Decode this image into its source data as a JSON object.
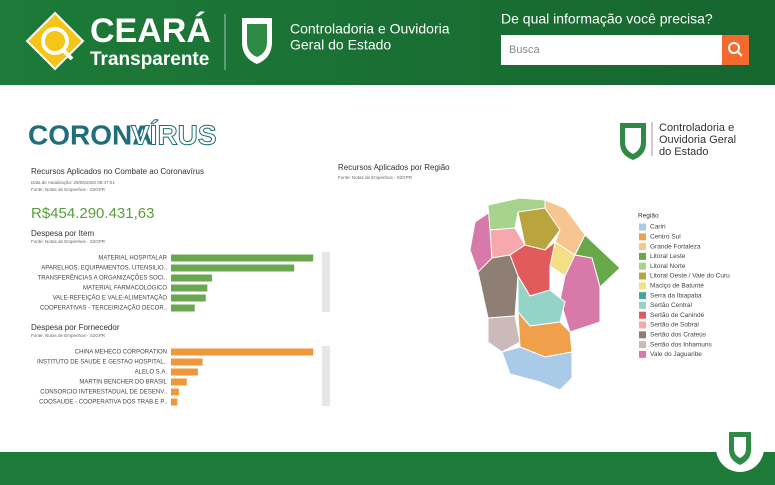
{
  "header": {
    "logo_title": "CEARÁ",
    "logo_subtitle": "Transparente",
    "agency": [
      "Controladoria e Ouvidoria",
      "Geral do Estado"
    ],
    "search_prompt": "De qual informação você precisa?",
    "search_placeholder": "Busca"
  },
  "dashboard": {
    "title_bold": "CORONA",
    "title_outline": "VÍRUS",
    "agency": [
      "Controladoria e",
      "Ouvidoria Geral",
      "do Estado"
    ],
    "summary": {
      "title": "Recursos Aplicados no Combate ao Coronavírus",
      "updated": "Data de Atualização: 29/06/2020 08:47:01",
      "source": "Fonte: Notas de Empenhos - S2GPR",
      "total": "R$454.290.431,63"
    },
    "map": {
      "title": "Recursos Aplicados por Região",
      "source": "Fonte: Notas de Empenhos - S2GPR",
      "legend_title": "Região",
      "regions": [
        {
          "name": "Cariri",
          "color": "#a9cbe8"
        },
        {
          "name": "Centro Sul",
          "color": "#f0a04b"
        },
        {
          "name": "Grande Fortaleza",
          "color": "#f8c591"
        },
        {
          "name": "Litoral Leste",
          "color": "#66a84a"
        },
        {
          "name": "Litoral Norte",
          "color": "#a7d48c"
        },
        {
          "name": "Litoral Oeste / Vale do Curu",
          "color": "#b9a43e"
        },
        {
          "name": "Maciço de Baturité",
          "color": "#f2df86"
        },
        {
          "name": "Serra da Ibiapaba",
          "color": "#4aa6a2"
        },
        {
          "name": "Sertão Central",
          "color": "#93d3c8"
        },
        {
          "name": "Sertão de Canindé",
          "color": "#e15b5d"
        },
        {
          "name": "Sertão de Sobral",
          "color": "#f6a9ac"
        },
        {
          "name": "Sertão dos Crateús",
          "color": "#8e7e74"
        },
        {
          "name": "Sertão dos Inhamuns",
          "color": "#cbbab9"
        },
        {
          "name": "Vale do Jaguaribe",
          "color": "#d87aa9"
        }
      ]
    }
  },
  "chart_data": [
    {
      "type": "bar",
      "title": "Despesa por Item",
      "source": "Fonte: Notas de Empenhos - S2GPR",
      "color": "#6aa84f",
      "xlim": [
        0,
        100
      ],
      "categories": [
        "MATERIAL HOSPITALAR",
        "APARELHOS, EQUIPAMENTOS, UTENSILIO..",
        "TRANSFERÊNCIAS A ORGANIZAÇÕES SOCI..",
        "MATERIAL FARMACOLÓGICO",
        "VALE-REFEIÇÃO E VALE-ALIMENTAÇÃO",
        "COOPERATIVAS - TERCEIRIZAÇÃO DECOR.."
      ],
      "values": [
        90,
        78,
        26,
        23,
        22,
        15
      ]
    },
    {
      "type": "bar",
      "title": "Despesa por Fornecedor",
      "source": "Fonte: Notas de Empenhos - S2GPR",
      "color": "#f0973a",
      "xlim": [
        0,
        100
      ],
      "categories": [
        "CHINA MEHECO CORPORATION",
        "INSTITUTO DE SAUDE E GESTAO HOSPITAL..",
        "ALELO S.A.",
        "MARTIN BENCHER DO BRASIL",
        "CONSORCIO INTERESTADUAL DE DESENV..",
        "COOSAUDE - COOPERATIVA DOS TRAB.E P.."
      ],
      "values": [
        90,
        20,
        17,
        10,
        5,
        4
      ]
    }
  ]
}
